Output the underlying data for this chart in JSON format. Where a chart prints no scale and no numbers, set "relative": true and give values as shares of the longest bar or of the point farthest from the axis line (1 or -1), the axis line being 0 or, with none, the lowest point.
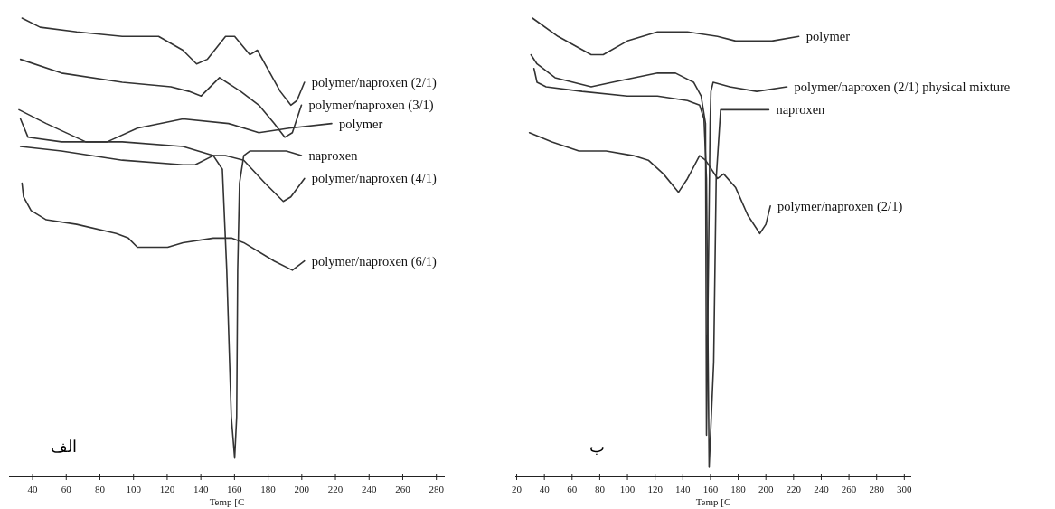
{
  "chart_data": [
    {
      "type": "line",
      "relative": true,
      "xlabel": "Temp [C",
      "xlim": [
        26,
        285
      ],
      "xticks": [
        40,
        60,
        80,
        100,
        120,
        140,
        160,
        180,
        200,
        220,
        240,
        260,
        280
      ],
      "annotations": [
        "الف"
      ],
      "series": [
        {
          "name": "polymer/naproxen (2/1)",
          "color": "#333333",
          "x": [
            33.7,
            44.5,
            66.2,
            93.3,
            114.9,
            129.3,
            137.5,
            143.8,
            154.7,
            160.1,
            169.1,
            173.6,
            178.1,
            187.2,
            193.5,
            197.1,
            201.6
          ],
          "values": [
            1.0,
            0.98,
            0.97,
            0.96,
            0.96,
            0.93,
            0.9,
            0.91,
            0.96,
            0.96,
            0.92,
            0.93,
            0.9,
            0.84,
            0.81,
            0.82,
            0.86
          ]
        },
        {
          "name": "polymer/naproxen (3/1)",
          "color": "#333333",
          "x": [
            32.8,
            57.2,
            93.3,
            122.2,
            133.0,
            140.2,
            151.1,
            163.7,
            174.5,
            183.6,
            189.9,
            194.4,
            199.8
          ],
          "values": [
            0.91,
            0.88,
            0.86,
            0.85,
            0.84,
            0.83,
            0.87,
            0.84,
            0.81,
            0.77,
            0.74,
            0.75,
            0.81
          ]
        },
        {
          "name": "polymer",
          "color": "#333333",
          "x": [
            31.9,
            48.1,
            71.6,
            84.3,
            102.3,
            129.4,
            156.5,
            174.5,
            192.6,
            217.8
          ],
          "values": [
            0.8,
            0.77,
            0.73,
            0.73,
            0.76,
            0.78,
            0.77,
            0.75,
            0.76,
            0.77
          ]
        },
        {
          "name": "naproxen",
          "color": "#333333",
          "x": [
            32.8,
            37.3,
            57.2,
            93.3,
            129.4,
            147.4,
            152.8,
            155.4,
            158.1,
            160.1,
            161.3,
            161.9,
            163.0,
            165.5,
            169.1,
            190.8,
            199.8
          ],
          "values": [
            0.78,
            0.74,
            0.73,
            0.73,
            0.72,
            0.7,
            0.67,
            0.45,
            0.13,
            0.04,
            0.13,
            0.45,
            0.64,
            0.7,
            0.71,
            0.71,
            0.7
          ]
        },
        {
          "name": "polymer/naproxen (4/1)",
          "color": "#333333",
          "x": [
            32.8,
            57.2,
            93.3,
            129.4,
            136.6,
            147.4,
            154.7,
            165.5,
            178.1,
            189.0,
            193.5,
            201.6
          ],
          "values": [
            0.72,
            0.71,
            0.69,
            0.68,
            0.68,
            0.7,
            0.7,
            0.69,
            0.64,
            0.6,
            0.61,
            0.65
          ]
        },
        {
          "name": "polymer/naproxen (6/1)",
          "color": "#333333",
          "x": [
            33.7,
            34.6,
            39.1,
            48.1,
            66.2,
            89.7,
            96.9,
            102.3,
            120.3,
            129.4,
            147.4,
            158.2,
            165.5,
            183.6,
            194.4,
            201.6
          ],
          "values": [
            0.64,
            0.61,
            0.58,
            0.56,
            0.55,
            0.53,
            0.52,
            0.5,
            0.5,
            0.51,
            0.52,
            0.52,
            0.51,
            0.47,
            0.45,
            0.47
          ]
        }
      ]
    },
    {
      "type": "line",
      "relative": true,
      "xlabel": "Temp [C",
      "xlim": [
        19,
        305
      ],
      "xticks": [
        20,
        40,
        60,
        80,
        100,
        120,
        140,
        160,
        180,
        200,
        220,
        240,
        260,
        280,
        300
      ],
      "annotations": [
        "ب"
      ],
      "series": [
        {
          "name": "polymer",
          "color": "#333333",
          "x": [
            31.4,
            49.9,
            73.8,
            82.5,
            99.9,
            121.7,
            143.4,
            165.1,
            178.2,
            186.9,
            204.3,
            223.8
          ],
          "values": [
            1.0,
            0.96,
            0.92,
            0.92,
            0.95,
            0.97,
            0.97,
            0.96,
            0.95,
            0.95,
            0.95,
            0.96
          ]
        },
        {
          "name": "polymer/naproxen (2/1) physical mixture",
          "color": "#333333",
          "x": [
            30.3,
            34.7,
            47.7,
            73.8,
            89.1,
            121.7,
            134.7,
            147.8,
            153.2,
            156.4,
            157.1,
            159.7,
            160.3,
            161.9,
            173.9,
            193.4,
            215.2
          ],
          "values": [
            0.92,
            0.9,
            0.87,
            0.85,
            0.86,
            0.88,
            0.88,
            0.86,
            0.83,
            0.77,
            0.09,
            0.77,
            0.84,
            0.86,
            0.85,
            0.84,
            0.85
          ]
        },
        {
          "name": "naproxen",
          "color": "#333333",
          "x": [
            32.5,
            34.7,
            41.2,
            67.3,
            99.9,
            121.7,
            143.4,
            152.1,
            155.3,
            157.1,
            159.0,
            162.3,
            164.1,
            167.3,
            186.9,
            191.2,
            202.1
          ],
          "values": [
            0.89,
            0.86,
            0.85,
            0.84,
            0.83,
            0.83,
            0.82,
            0.81,
            0.78,
            0.65,
            0.02,
            0.25,
            0.65,
            0.8,
            0.8,
            0.8,
            0.8
          ]
        },
        {
          "name": "polymer/naproxen (2/1)",
          "color": "#333333",
          "x": [
            29.2,
            45.5,
            65.0,
            84.6,
            104.2,
            115.1,
            126.0,
            136.9,
            143.4,
            152.1,
            156.4,
            165.1,
            169.5,
            178.2,
            186.9,
            195.6,
            200.0,
            203.2
          ],
          "values": [
            0.75,
            0.73,
            0.71,
            0.71,
            0.7,
            0.69,
            0.66,
            0.62,
            0.65,
            0.7,
            0.69,
            0.65,
            0.66,
            0.63,
            0.57,
            0.53,
            0.55,
            0.59
          ]
        }
      ]
    }
  ]
}
